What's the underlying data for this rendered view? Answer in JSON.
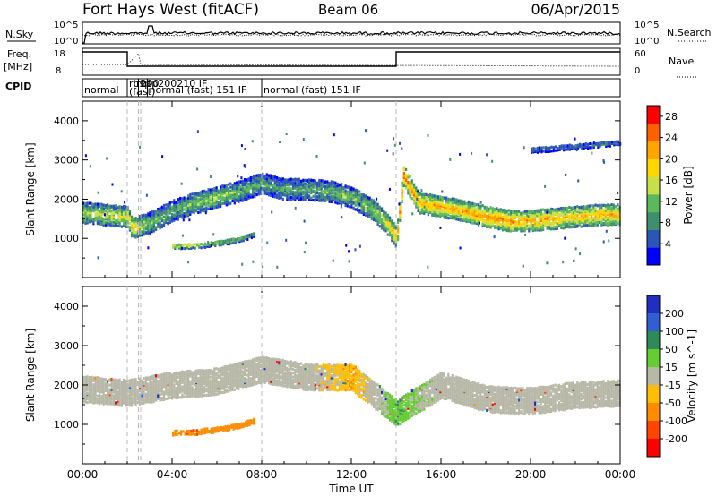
{
  "header": {
    "station": "Fort Hays West (fitACF)",
    "beam": "Beam 06",
    "date": "06/Apr/2015"
  },
  "noise_panel": {
    "left_label": "N.Sky",
    "right_label": "N.Search",
    "left_ticks": [
      "10^5",
      "10^0"
    ],
    "right_ticks": [
      "10^5",
      "10^0"
    ]
  },
  "freq_panel": {
    "left_label_1": "Freq.",
    "left_label_2": "[MHz]",
    "right_label": "Nave",
    "left_ticks": [
      "18",
      "8"
    ],
    "right_ticks": [
      "60",
      "0"
    ]
  },
  "cpid_panel": {
    "label": "CPID",
    "segments": [
      {
        "text": "normal",
        "start_h": 0.0,
        "end_h": 2.0
      },
      {
        "text": "rbsp",
        "start_h": 2.0,
        "end_h": 2.5
      },
      {
        "text": "(fast)",
        "start_h": 2.0,
        "end_h": 2.9
      },
      {
        "text": "200",
        "start_h": 2.5,
        "end_h": 2.9
      },
      {
        "text": "normal (fast) 151 IF",
        "start_h": 2.9,
        "end_h": 8.0
      },
      {
        "text": "normal (fast) 151 IF",
        "start_h": 8.0,
        "end_h": 24.0
      }
    ],
    "overlap_text": "rbsp200210 IF"
  },
  "colors": {
    "power_scale": [
      "#0000ff",
      "#2c55b8",
      "#3f8f6e",
      "#5cb85c",
      "#c8e048",
      "#ffd700",
      "#ffa500",
      "#ff6000",
      "#ff0000"
    ],
    "velocity_scale": [
      "#1f2fbf",
      "#2f5fd0",
      "#2e8b57",
      "#66cc33",
      "#b8b8a8",
      "#ffbf00",
      "#ff8c00",
      "#ff4500",
      "#ff0000"
    ],
    "ground_scatter": "#c0c0b8"
  },
  "chart_data": [
    {
      "type": "heatmap",
      "title": "",
      "ylabel": "Slant Range [km]",
      "xlabel": "Time UT",
      "xlim": [
        0,
        24
      ],
      "ylim": [
        0,
        4500
      ],
      "yticks": [
        1000,
        2000,
        3000,
        4000
      ],
      "xticks": [
        "00:00",
        "04:00",
        "08:00",
        "12:00",
        "16:00",
        "20:00",
        "00:00"
      ],
      "xtick_hours": [
        0,
        4,
        8,
        12,
        16,
        20,
        24
      ],
      "colorbar": {
        "label": "Power [dB]",
        "ticks": [
          4,
          8,
          12,
          16,
          20,
          24,
          28
        ],
        "range": [
          0,
          30
        ]
      },
      "bands": [
        {
          "name": "F-region main",
          "hours": [
            0,
            1,
            2,
            2.2,
            3,
            4,
            5,
            6,
            7,
            8,
            9,
            10,
            11,
            12,
            13,
            13.6,
            14,
            14.3,
            15,
            16,
            17,
            18,
            19,
            20,
            21,
            22,
            23,
            24
          ],
          "center_km": [
            1650,
            1600,
            1550,
            1250,
            1400,
            1700,
            1900,
            2050,
            2200,
            2400,
            2250,
            2250,
            2200,
            2050,
            1700,
            1350,
            1000,
            2600,
            1900,
            1800,
            1700,
            1550,
            1450,
            1450,
            1500,
            1550,
            1600,
            1600
          ],
          "power_db": [
            14,
            16,
            18,
            20,
            12,
            10,
            12,
            14,
            12,
            10,
            10,
            10,
            12,
            12,
            14,
            18,
            22,
            26,
            22,
            22,
            22,
            24,
            24,
            22,
            22,
            20,
            22,
            22
          ]
        },
        {
          "name": "lower band",
          "hours": [
            4.0,
            5.0,
            6.0,
            7.0,
            7.6
          ],
          "center_km": [
            800,
            820,
            880,
            980,
            1100
          ],
          "power_db": [
            16,
            18,
            14,
            12,
            10
          ]
        },
        {
          "name": "far range",
          "hours": [
            20.0,
            21.0,
            22.0,
            23.0,
            24.0
          ],
          "center_km": [
            3250,
            3300,
            3350,
            3400,
            3450
          ],
          "power_db": [
            6,
            6,
            8,
            8,
            8
          ]
        }
      ]
    },
    {
      "type": "heatmap",
      "title": "",
      "ylabel": "Slant Range [km]",
      "xlabel": "Time UT",
      "xlim": [
        0,
        24
      ],
      "ylim": [
        0,
        4500
      ],
      "yticks": [
        1000,
        2000,
        3000,
        4000
      ],
      "xticks": [
        "00:00",
        "04:00",
        "08:00",
        "12:00",
        "16:00",
        "20:00",
        "00:00"
      ],
      "xtick_hours": [
        0,
        4,
        8,
        12,
        16,
        20,
        24
      ],
      "colorbar": {
        "label": "Velocity [m s^-1]",
        "ticks": [
          200,
          100,
          50,
          15,
          -15,
          -50,
          -100,
          -200
        ]
      },
      "bands": [
        {
          "name": "ground scatter",
          "hours": [
            0,
            2,
            4,
            6,
            8,
            10,
            12,
            14,
            16,
            18,
            20,
            22,
            24
          ],
          "center_km": [
            1900,
            1800,
            2000,
            2100,
            2400,
            2200,
            2200,
            1300,
            2000,
            1650,
            1600,
            1750,
            1800
          ],
          "velocity": [
            0,
            0,
            0,
            0,
            0,
            0,
            -30,
            30,
            0,
            0,
            0,
            0,
            0
          ]
        },
        {
          "name": "low-range flow",
          "hours": [
            4.0,
            5.0,
            6.0,
            7.0,
            7.6
          ],
          "center_km": [
            800,
            820,
            880,
            980,
            1100
          ],
          "velocity": [
            -60,
            -70,
            -60,
            -50,
            -40
          ]
        }
      ]
    }
  ]
}
